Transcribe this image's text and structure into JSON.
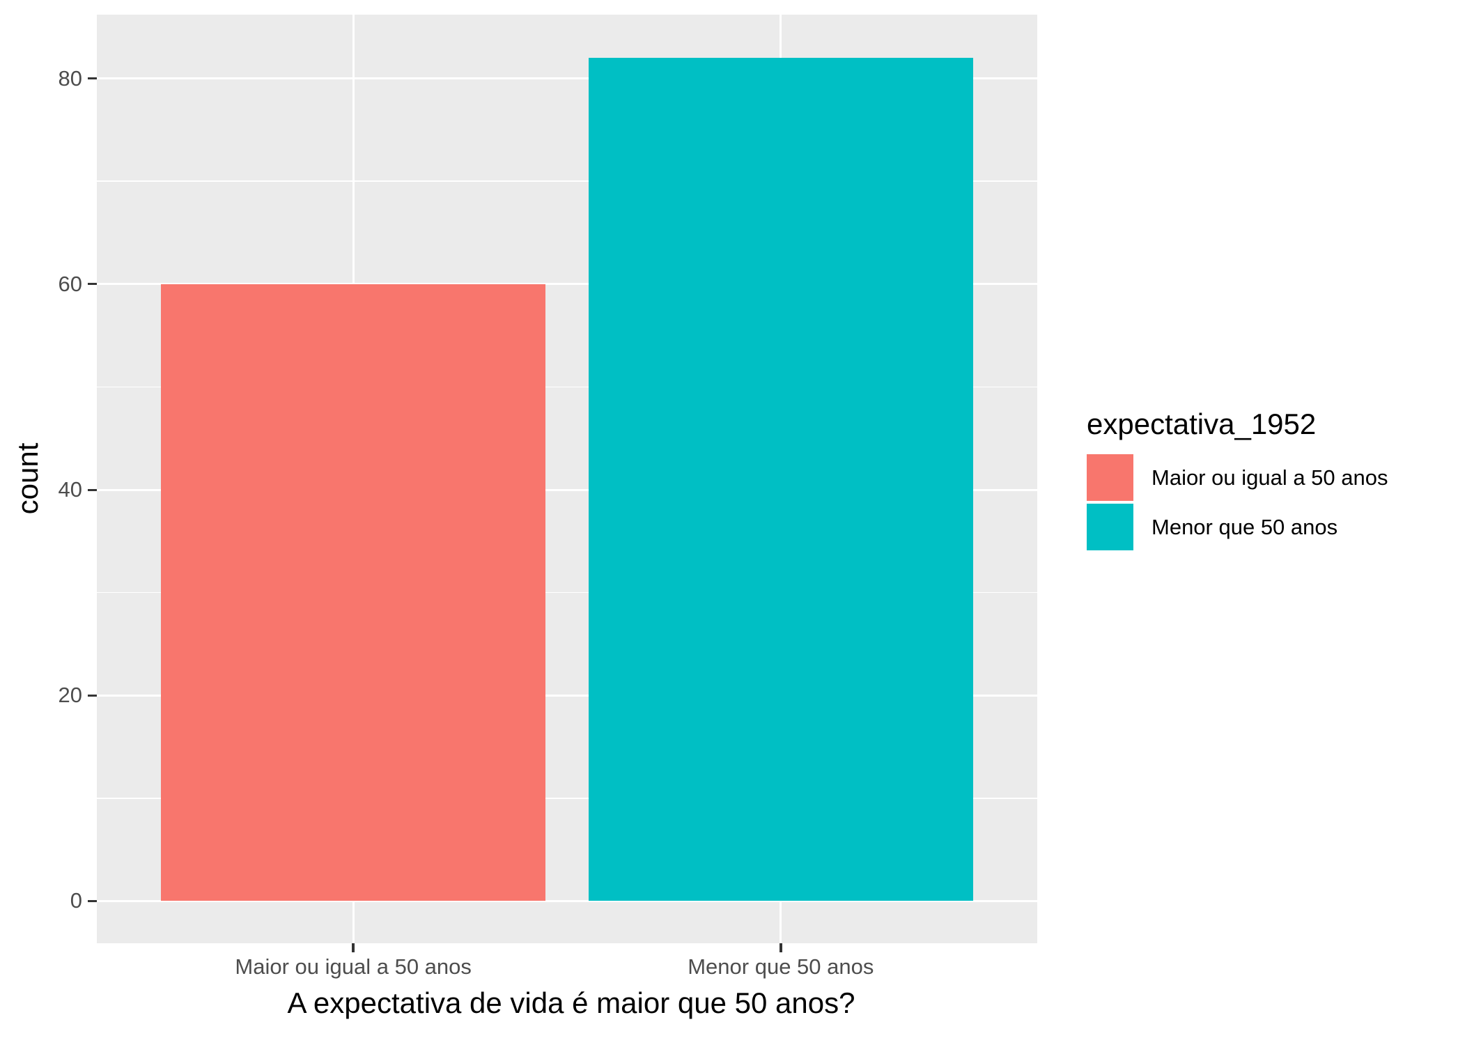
{
  "figure": {
    "background": "#FFFFFF",
    "panel_background": "#EBEBEB",
    "gridline_color": "#FFFFFF",
    "tick_mark_color": "#333333",
    "axis_text_color": "#4D4D4D",
    "title_text_color": "#000000"
  },
  "chart_data": {
    "type": "bar",
    "title": "",
    "categories": [
      "Maior ou igual a 50 anos",
      "Menor que 50 anos"
    ],
    "values": [
      60,
      82
    ],
    "bar_colors": [
      "#F8766D",
      "#00BFC4"
    ],
    "xlabel": "A expectativa de vida é maior que 50 anos?",
    "ylabel": "count",
    "y_ticks": [
      0,
      20,
      40,
      60,
      80
    ],
    "y_minor_ticks": [
      10,
      30,
      50,
      70
    ],
    "ylim": [
      -4.1,
      86.2
    ],
    "xlim": [
      0.4,
      2.6
    ],
    "bar_width": 0.9,
    "grid": "major+minor",
    "legend_position": "right",
    "legend": {
      "title": "expectativa_1952",
      "entries": [
        {
          "label": "Maior ou igual a 50 anos",
          "color": "#F8766D"
        },
        {
          "label": "Menor que 50 anos",
          "color": "#00BFC4"
        }
      ]
    }
  }
}
